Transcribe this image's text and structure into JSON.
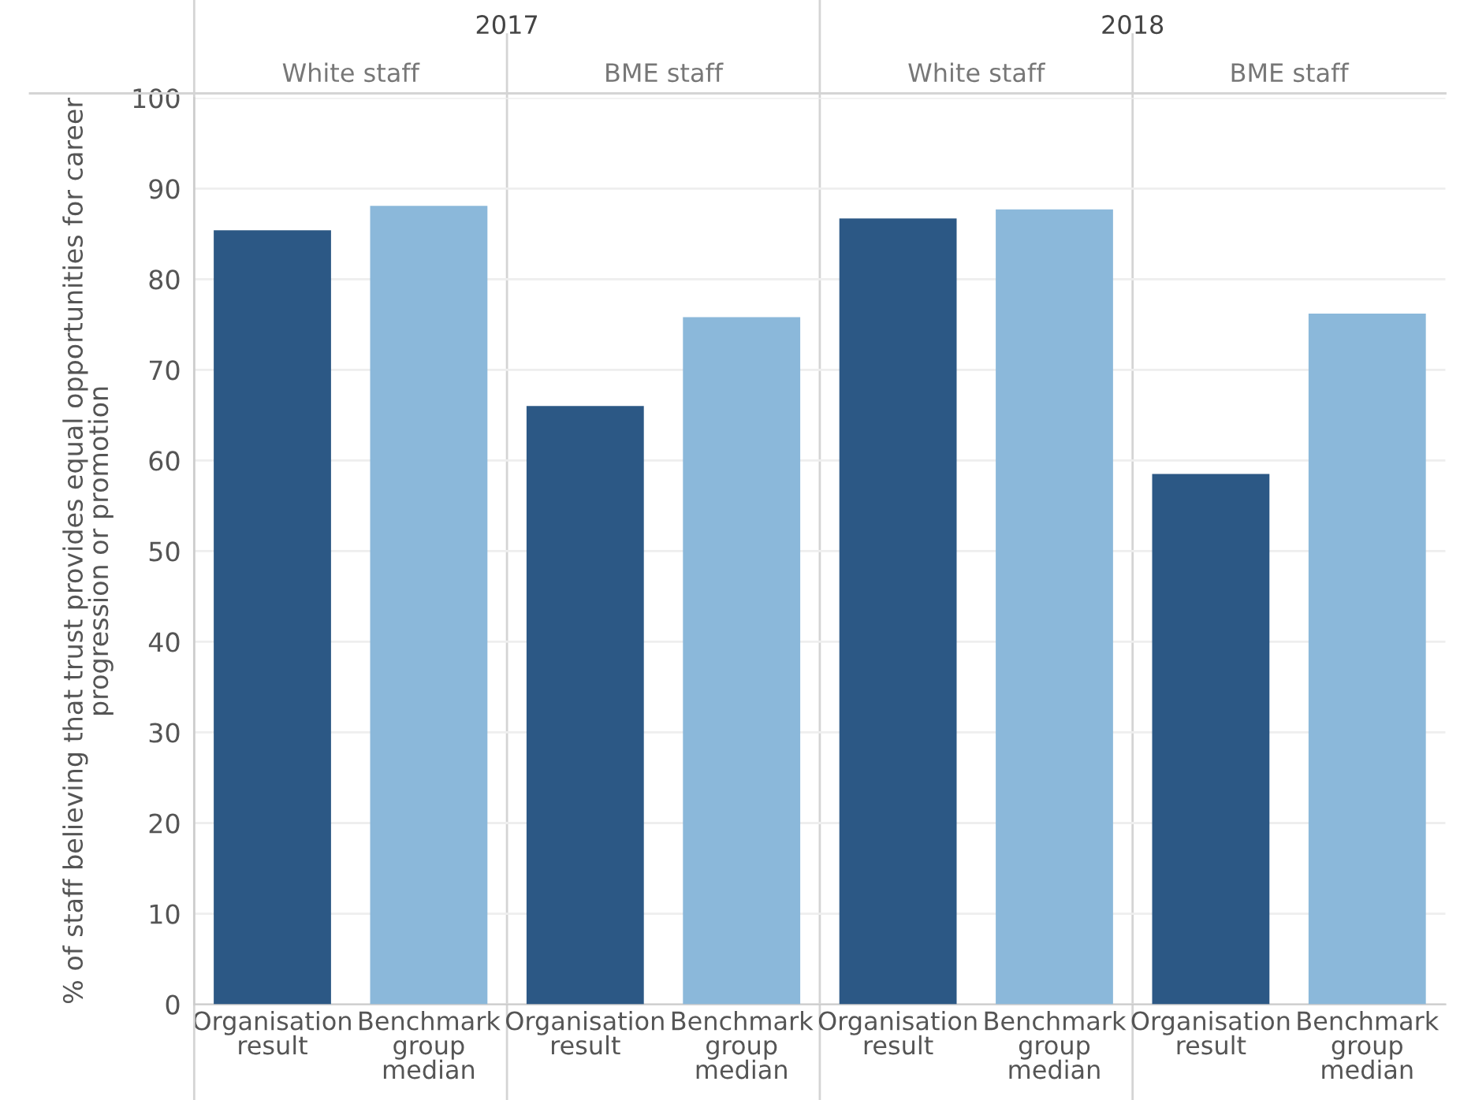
{
  "chart_data": {
    "type": "bar",
    "categories": [
      "Organisation result",
      "Benchmark group median",
      "Organisation result",
      "Benchmark group median",
      "Organisation result",
      "Benchmark group median",
      "Organisation result",
      "Benchmark group median"
    ],
    "values": [
      85.4,
      88.1,
      66.0,
      75.8,
      86.7,
      87.7,
      58.5,
      76.2
    ],
    "colors": [
      "#2c5885",
      "#8bb8da",
      "#2c5885",
      "#8bb8da",
      "#2c5885",
      "#8bb8da",
      "#2c5885",
      "#8bb8da"
    ],
    "ylabel": "% of staff believing that trust provides equal opportunities for career\nprogression or promotion",
    "annotations": [
      "2017",
      "2018",
      "White staff",
      "BME staff",
      "White staff",
      "BME staff"
    ],
    "ylim": [
      0,
      100
    ],
    "yticks": [
      0,
      10,
      20,
      30,
      40,
      50,
      60,
      70,
      80,
      90,
      100
    ],
    "grid": "y",
    "legend": false
  }
}
